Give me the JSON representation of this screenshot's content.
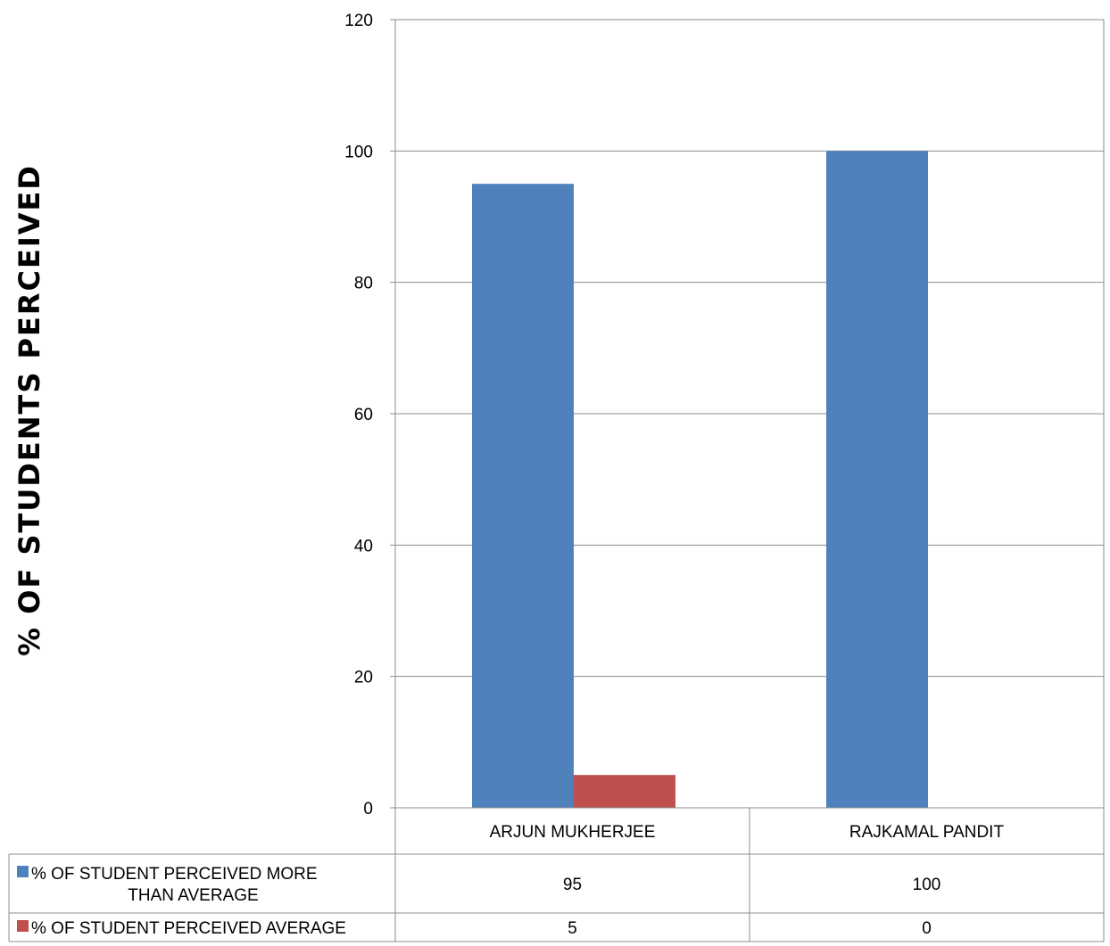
{
  "chart_data": {
    "type": "bar",
    "title": "",
    "xlabel": "",
    "ylabel": "% OF  STUDENTS  PERCEIVED",
    "ylim": [
      0,
      120
    ],
    "yticks": [
      0,
      20,
      40,
      60,
      80,
      100,
      120
    ],
    "grid": true,
    "legend_placement": "data-table-left",
    "categories": [
      "ARJUN MUKHERJEE",
      "RAJKAMAL PANDIT"
    ],
    "series": [
      {
        "name": "% OF STUDENT PERCEIVED MORE THAN AVERAGE",
        "name_lines": [
          "% OF STUDENT PERCEIVED MORE",
          "THAN AVERAGE"
        ],
        "color": "#4F81BD",
        "values": [
          95,
          100
        ]
      },
      {
        "name": "% OF STUDENT PERCEIVED AVERAGE",
        "name_lines": [
          "% OF STUDENT PERCEIVED AVERAGE"
        ],
        "color": "#C0504D",
        "values": [
          5,
          0
        ]
      }
    ]
  }
}
